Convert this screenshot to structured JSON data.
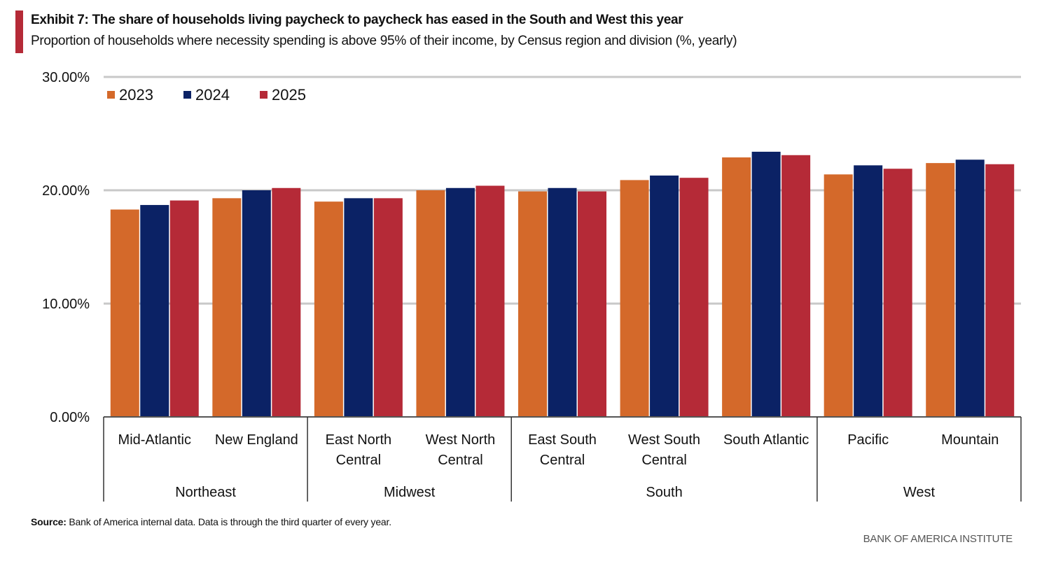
{
  "header": {
    "title": "Exhibit 7: The share of households living paycheck to paycheck has eased in the South and West this year",
    "subtitle": "Proportion of households where necessity spending is above 95% of their income, by Census region and division (%, yearly)"
  },
  "footer": {
    "source_label": "Source:",
    "source_text": " Bank of America internal data. Data is through the third quarter of every year.",
    "brand": "BANK OF AMERICA INSTITUTE"
  },
  "colors": {
    "2023": "#d4692a",
    "2024": "#0b2265",
    "2025": "#b52a37",
    "accent": "#b52a37",
    "grid": "#c8c8c8"
  },
  "chart_data": {
    "type": "bar",
    "title": "Exhibit 7: The share of households living paycheck to paycheck has eased in the South and West this year",
    "subtitle": "Proportion of households where necessity spending is above 95% of their income, by Census region and division (%, yearly)",
    "xlabel": "",
    "ylabel": "",
    "ylim": [
      0,
      30
    ],
    "yticks": [
      0,
      10,
      20,
      30
    ],
    "ytick_labels": [
      "0.00%",
      "10.00%",
      "20.00%",
      "30.00%"
    ],
    "grid": true,
    "legend_position": "top-left",
    "categories": [
      {
        "label": [
          "Mid-Atlantic"
        ],
        "region": "Northeast"
      },
      {
        "label": [
          "New England"
        ],
        "region": "Northeast"
      },
      {
        "label": [
          "East North",
          "Central"
        ],
        "region": "Midwest"
      },
      {
        "label": [
          "West North",
          "Central"
        ],
        "region": "Midwest"
      },
      {
        "label": [
          "East South",
          "Central"
        ],
        "region": "South"
      },
      {
        "label": [
          "West South",
          "Central"
        ],
        "region": "South"
      },
      {
        "label": [
          "South Atlantic"
        ],
        "region": "South"
      },
      {
        "label": [
          "Pacific"
        ],
        "region": "West"
      },
      {
        "label": [
          "Mountain"
        ],
        "region": "West"
      }
    ],
    "regions": [
      "Northeast",
      "Midwest",
      "South",
      "West"
    ],
    "series": [
      {
        "name": "2023",
        "values": [
          18.3,
          19.3,
          19.0,
          20.0,
          19.9,
          20.9,
          22.9,
          21.4,
          22.4
        ]
      },
      {
        "name": "2024",
        "values": [
          18.7,
          20.0,
          19.3,
          20.2,
          20.2,
          21.3,
          23.4,
          22.2,
          22.7
        ]
      },
      {
        "name": "2025",
        "values": [
          19.1,
          20.2,
          19.3,
          20.4,
          19.9,
          21.1,
          23.1,
          21.9,
          22.3
        ]
      }
    ]
  }
}
